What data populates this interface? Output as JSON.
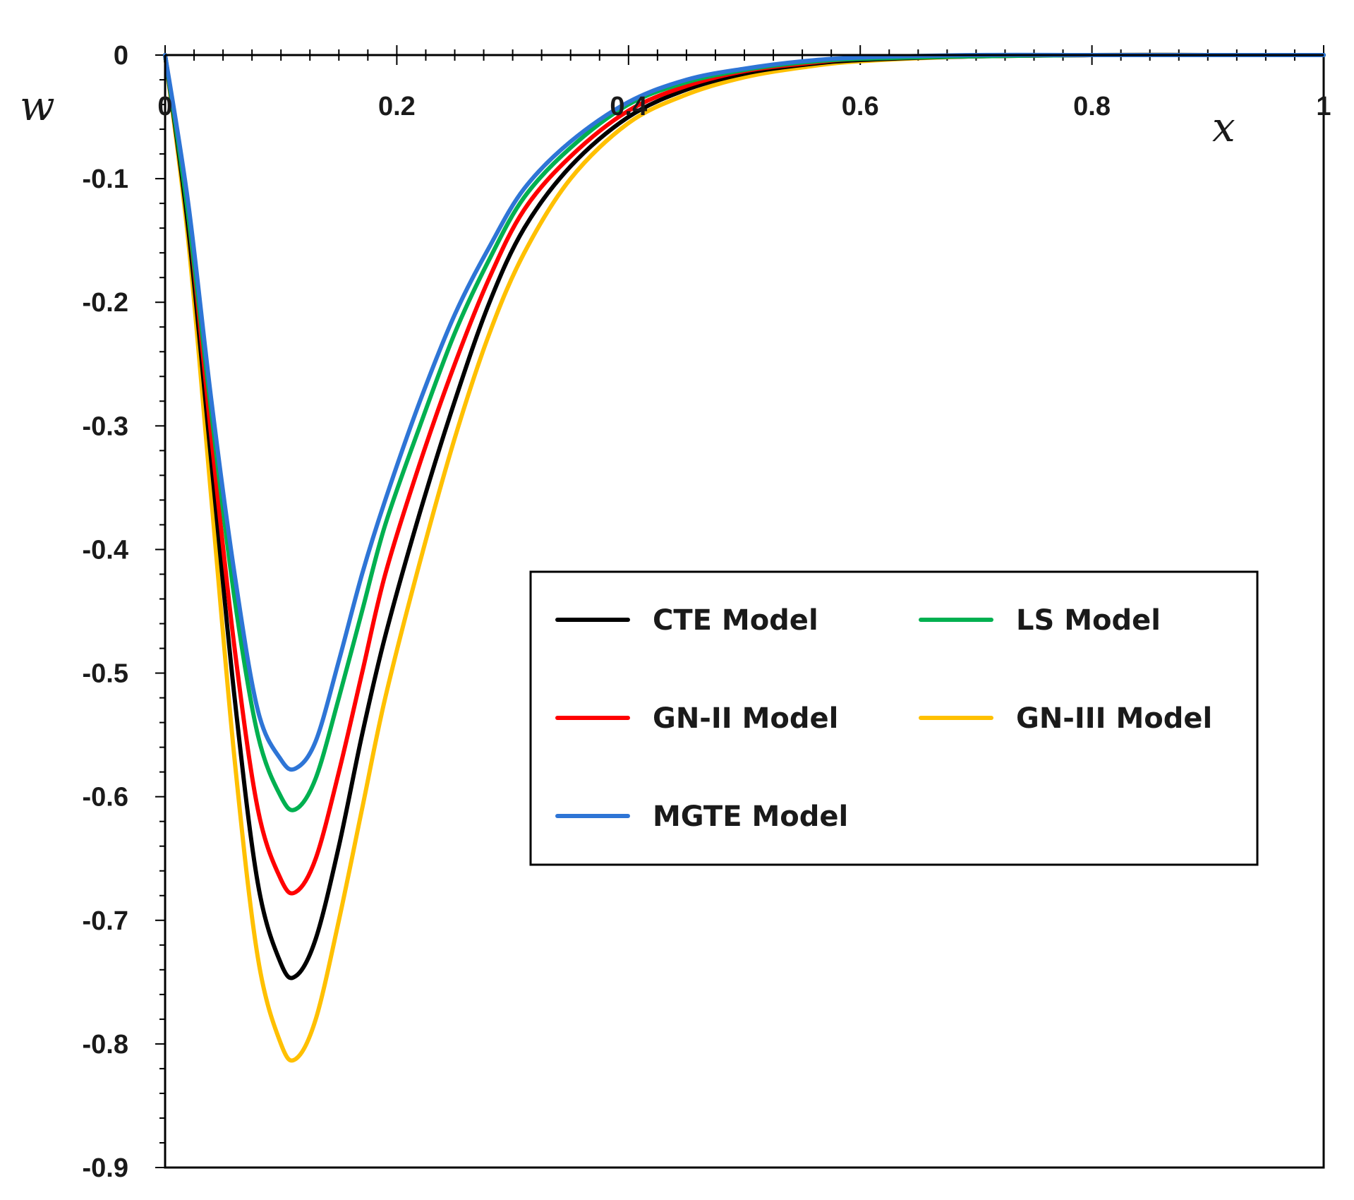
{
  "chart_data": {
    "type": "line",
    "xlabel": "x",
    "ylabel": "w",
    "xlim": [
      0,
      1
    ],
    "ylim": [
      -0.9,
      0
    ],
    "x_ticks": [
      "0",
      "0.2",
      "0.4",
      "0.6",
      "0.8",
      "1"
    ],
    "y_ticks": [
      "0",
      "-0.1",
      "-0.2",
      "-0.3",
      "-0.4",
      "-0.5",
      "-0.6",
      "-0.7",
      "-0.8",
      "-0.9"
    ],
    "x_tick_values": [
      0,
      0.2,
      0.4,
      0.6,
      0.8,
      1
    ],
    "y_tick_values": [
      0,
      -0.1,
      -0.2,
      -0.3,
      -0.4,
      -0.5,
      -0.6,
      -0.7,
      -0.8,
      -0.9
    ],
    "grid": false,
    "legend_position": "center-right",
    "x": [
      0,
      0.02,
      0.04,
      0.06,
      0.08,
      0.1,
      0.113,
      0.13,
      0.15,
      0.17,
      0.19,
      0.22,
      0.25,
      0.28,
      0.31,
      0.35,
      0.4,
      0.45,
      0.5,
      0.55,
      0.6,
      0.7,
      0.8,
      0.9,
      1.0
    ],
    "series": [
      {
        "name": "CTE Model",
        "color": "#000000",
        "values": [
          0,
          -0.14,
          -0.33,
          -0.52,
          -0.67,
          -0.735,
          -0.745,
          -0.715,
          -0.64,
          -0.55,
          -0.47,
          -0.37,
          -0.28,
          -0.2,
          -0.14,
          -0.09,
          -0.05,
          -0.028,
          -0.015,
          -0.008,
          -0.004,
          -0.001,
          0,
          0,
          0
        ]
      },
      {
        "name": "LS Model",
        "color": "#00b050",
        "values": [
          0,
          -0.13,
          -0.29,
          -0.44,
          -0.55,
          -0.6,
          -0.61,
          -0.585,
          -0.52,
          -0.45,
          -0.38,
          -0.3,
          -0.225,
          -0.165,
          -0.115,
          -0.075,
          -0.04,
          -0.022,
          -0.012,
          -0.006,
          -0.003,
          -0.001,
          0,
          0,
          0
        ]
      },
      {
        "name": "GN-II Model",
        "color": "#ff0000",
        "values": [
          0,
          -0.13,
          -0.31,
          -0.48,
          -0.61,
          -0.667,
          -0.677,
          -0.65,
          -0.58,
          -0.5,
          -0.42,
          -0.33,
          -0.25,
          -0.18,
          -0.125,
          -0.082,
          -0.045,
          -0.025,
          -0.013,
          -0.007,
          -0.003,
          -0.001,
          0,
          0,
          0
        ]
      },
      {
        "name": "GN-III Model",
        "color": "#ffc000",
        "values": [
          0,
          -0.15,
          -0.36,
          -0.57,
          -0.73,
          -0.8,
          -0.812,
          -0.78,
          -0.7,
          -0.61,
          -0.52,
          -0.41,
          -0.31,
          -0.225,
          -0.16,
          -0.1,
          -0.055,
          -0.032,
          -0.018,
          -0.01,
          -0.005,
          -0.001,
          0,
          0,
          0
        ]
      },
      {
        "name": "MGTE Model",
        "color": "#2e75d6",
        "values": [
          0,
          -0.12,
          -0.28,
          -0.42,
          -0.53,
          -0.57,
          -0.577,
          -0.555,
          -0.49,
          -0.42,
          -0.36,
          -0.28,
          -0.21,
          -0.155,
          -0.108,
          -0.07,
          -0.038,
          -0.02,
          -0.011,
          -0.005,
          -0.002,
          0,
          0,
          0,
          0
        ]
      }
    ]
  }
}
